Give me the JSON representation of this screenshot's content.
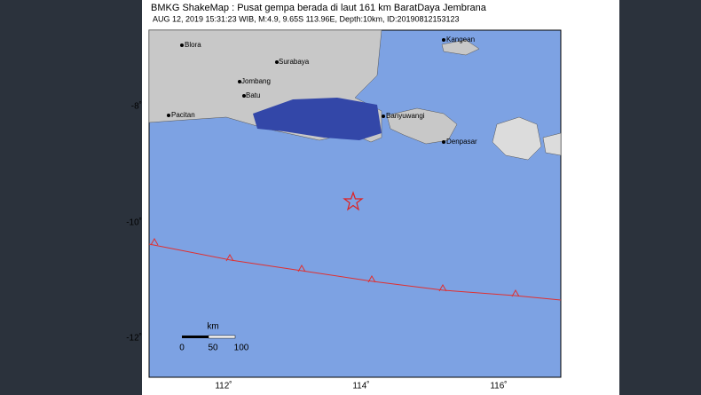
{
  "header": {
    "title": "BMKG ShakeMap : Pusat gempa berada di laut 161 km BaratDaya Jembrana",
    "subtitle": "AUG 12, 2019 15:31:23 WIB, M:4.9, 9.65S 113.96E, Depth:10km, ID:20190812153123"
  },
  "axes": {
    "lat_ticks": [
      "-8˚",
      "-10˚",
      "-12˚"
    ],
    "lon_ticks": [
      "112˚",
      "114˚",
      "116˚"
    ]
  },
  "places": [
    "Blora",
    "Surabaya",
    "Jombang",
    "Batu",
    "Pacitan",
    "Banyuwangi",
    "Denpasar",
    "Kangean"
  ],
  "scale": {
    "unit": "km",
    "labels": [
      "0",
      "50",
      "100"
    ]
  }
}
